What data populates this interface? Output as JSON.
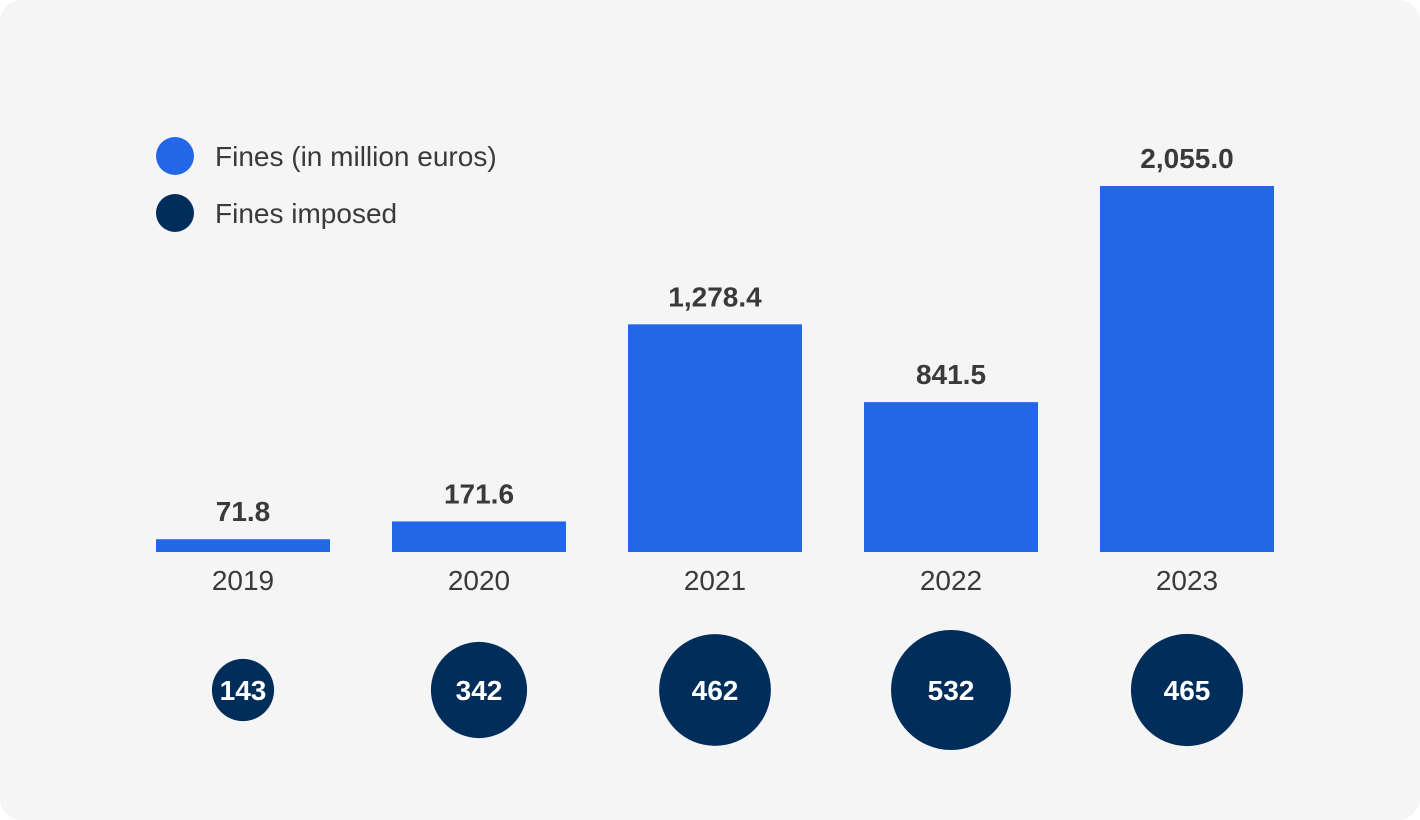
{
  "chart_data": {
    "type": "bar",
    "categories": [
      "2019",
      "2020",
      "2021",
      "2022",
      "2023"
    ],
    "series": [
      {
        "name": "Fines (in million euros)",
        "values": [
          71.8,
          171.6,
          1278.4,
          841.5,
          2055.0
        ],
        "labels": [
          "71.8",
          "171.6",
          "1,278.4",
          "841.5",
          "2,055.0"
        ],
        "color": "#2367e8",
        "mark": "bar"
      },
      {
        "name": "Fines imposed",
        "values": [
          143,
          342,
          462,
          532,
          465
        ],
        "labels": [
          "143",
          "342",
          "462",
          "532",
          "465"
        ],
        "color": "#002d5a",
        "mark": "bubble"
      }
    ],
    "ylim": [
      0,
      2055
    ],
    "grid": false,
    "legend": "top-left",
    "title": "",
    "xlabel": "",
    "ylabel": ""
  }
}
